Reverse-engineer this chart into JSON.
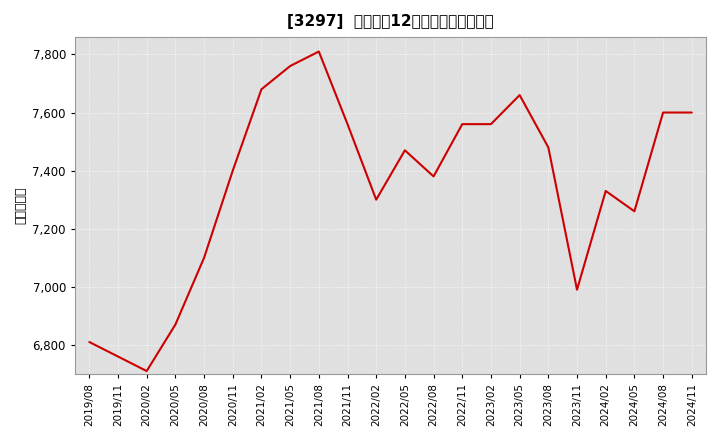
{
  "title": "[3297]  売上高の12か月移動合計の推移",
  "ylabel": "（百万円）",
  "line_color": "#cc0000",
  "bg_color": "#ffffff",
  "plot_bg_color": "#e0e0e0",
  "grid_color": "#ffffff",
  "ylim": [
    6700,
    7860
  ],
  "yticks": [
    6800,
    7000,
    7200,
    7400,
    7600,
    7800
  ],
  "dates": [
    "2019/08",
    "2019/11",
    "2020/02",
    "2020/05",
    "2020/08",
    "2020/11",
    "2021/02",
    "2021/05",
    "2021/08",
    "2021/11",
    "2022/02",
    "2022/05",
    "2022/08",
    "2022/11",
    "2023/02",
    "2023/05",
    "2023/08",
    "2023/11",
    "2024/02",
    "2024/05",
    "2024/08",
    "2024/11"
  ],
  "values": [
    6810,
    6760,
    6710,
    6870,
    7100,
    7400,
    7680,
    7760,
    7810,
    7560,
    7300,
    7470,
    7380,
    7560,
    7560,
    7660,
    7480,
    6990,
    7330,
    7260,
    7600,
    7600
  ]
}
